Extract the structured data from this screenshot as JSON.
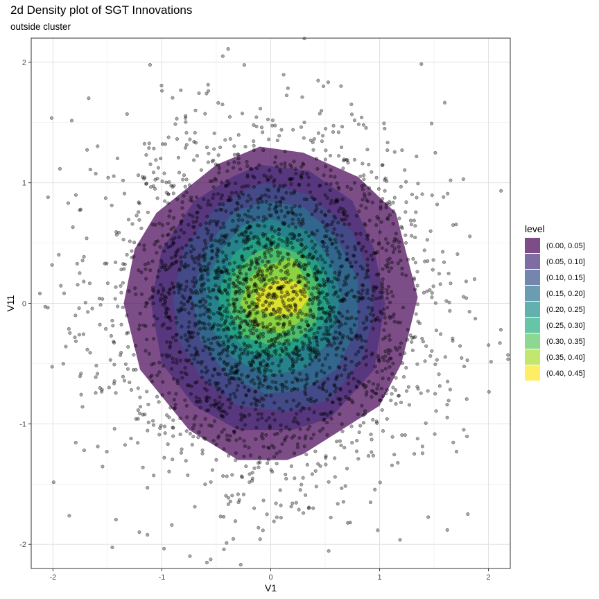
{
  "title": "2d Density plot of SGT Innovations",
  "subtitle": "outside cluster",
  "chart_data": {
    "type": "density_2d_filled_with_scatter",
    "title": "2d Density plot of SGT Innovations",
    "subtitle": "outside cluster",
    "xlabel": "V1",
    "ylabel": "V11",
    "xlim": [
      -2.2,
      2.2
    ],
    "ylim": [
      -2.2,
      2.2
    ],
    "x_ticks": [
      -2,
      -1,
      0,
      1,
      2
    ],
    "y_ticks": [
      -2,
      -1,
      0,
      1,
      2
    ],
    "grid": true,
    "legend": {
      "title": "level",
      "position": "right",
      "entries": [
        {
          "label": "(0.00, 0.05]",
          "color": "#440154"
        },
        {
          "label": "(0.05, 0.10]",
          "color": "#472D7B"
        },
        {
          "label": "(0.10, 0.15]",
          "color": "#3B528B"
        },
        {
          "label": "(0.15, 0.20]",
          "color": "#2C728E"
        },
        {
          "label": "(0.20, 0.25]",
          "color": "#21908C"
        },
        {
          "label": "(0.25, 0.30]",
          "color": "#27AD81"
        },
        {
          "label": "(0.30, 0.35]",
          "color": "#5DC863"
        },
        {
          "label": "(0.35, 0.40]",
          "color": "#AADC32"
        },
        {
          "label": "(0.40, 0.45]",
          "color": "#FDE725"
        }
      ]
    },
    "fill_alpha": 0.7,
    "density_bands": [
      {
        "level": "(0.00, 0.05]",
        "polygon": [
          [
            -0.1,
            1.3
          ],
          [
            0.3,
            1.25
          ],
          [
            0.8,
            1.05
          ],
          [
            1.15,
            0.75
          ],
          [
            1.35,
            0.05
          ],
          [
            1.2,
            -0.5
          ],
          [
            1.0,
            -0.85
          ],
          [
            0.3,
            -1.25
          ],
          [
            0.15,
            -1.3
          ],
          [
            -0.3,
            -1.3
          ],
          [
            -0.75,
            -1.05
          ],
          [
            -1.2,
            -0.55
          ],
          [
            -1.35,
            0.0
          ],
          [
            -1.25,
            0.45
          ],
          [
            -1.05,
            0.75
          ],
          [
            -0.5,
            1.15
          ]
        ]
      },
      {
        "level": "(0.05, 0.10]",
        "polygon": [
          [
            -0.1,
            1.15
          ],
          [
            0.35,
            1.1
          ],
          [
            0.75,
            0.85
          ],
          [
            0.95,
            0.45
          ],
          [
            1.05,
            0.0
          ],
          [
            0.95,
            -0.55
          ],
          [
            0.55,
            -0.95
          ],
          [
            0.2,
            -1.05
          ],
          [
            -0.3,
            -1.05
          ],
          [
            -0.7,
            -0.85
          ],
          [
            -1.0,
            -0.5
          ],
          [
            -1.1,
            0.0
          ],
          [
            -1.0,
            0.45
          ],
          [
            -0.7,
            0.85
          ],
          [
            -0.35,
            1.05
          ]
        ]
      },
      {
        "level": "(0.10, 0.15]",
        "polygon": [
          [
            -0.05,
            1.0
          ],
          [
            0.35,
            0.9
          ],
          [
            0.75,
            0.6
          ],
          [
            0.9,
            0.25
          ],
          [
            0.95,
            -0.05
          ],
          [
            0.85,
            -0.45
          ],
          [
            0.55,
            -0.8
          ],
          [
            0.15,
            -0.9
          ],
          [
            -0.3,
            -0.85
          ],
          [
            -0.65,
            -0.6
          ],
          [
            -0.85,
            -0.3
          ],
          [
            -0.9,
            0.05
          ],
          [
            -0.8,
            0.45
          ],
          [
            -0.5,
            0.8
          ],
          [
            -0.2,
            0.95
          ]
        ]
      },
      {
        "level": "(0.15, 0.20]",
        "polygon": [
          [
            -0.05,
            0.85
          ],
          [
            0.3,
            0.8
          ],
          [
            0.6,
            0.55
          ],
          [
            0.8,
            0.2
          ],
          [
            0.8,
            -0.2
          ],
          [
            0.6,
            -0.55
          ],
          [
            0.3,
            -0.72
          ],
          [
            -0.05,
            -0.75
          ],
          [
            -0.4,
            -0.6
          ],
          [
            -0.65,
            -0.3
          ],
          [
            -0.72,
            0.05
          ],
          [
            -0.6,
            0.45
          ],
          [
            -0.35,
            0.75
          ]
        ]
      },
      {
        "level": "(0.20, 0.25]",
        "polygon": [
          [
            0.0,
            0.7
          ],
          [
            0.35,
            0.6
          ],
          [
            0.55,
            0.35
          ],
          [
            0.65,
            0.05
          ],
          [
            0.55,
            -0.3
          ],
          [
            0.3,
            -0.55
          ],
          [
            -0.05,
            -0.6
          ],
          [
            -0.35,
            -0.45
          ],
          [
            -0.55,
            -0.2
          ],
          [
            -0.6,
            0.15
          ],
          [
            -0.45,
            0.45
          ],
          [
            -0.25,
            0.65
          ]
        ]
      },
      {
        "level": "(0.25, 0.30]",
        "polygon": [
          [
            0.0,
            0.58
          ],
          [
            0.3,
            0.5
          ],
          [
            0.5,
            0.25
          ],
          [
            0.55,
            -0.05
          ],
          [
            0.4,
            -0.3
          ],
          [
            0.1,
            -0.45
          ],
          [
            -0.2,
            -0.4
          ],
          [
            -0.45,
            -0.2
          ],
          [
            -0.48,
            0.1
          ],
          [
            -0.35,
            0.4
          ],
          [
            -0.15,
            0.55
          ]
        ]
      },
      {
        "level": "(0.30, 0.35]",
        "polygon": [
          [
            0.05,
            0.48
          ],
          [
            0.3,
            0.4
          ],
          [
            0.45,
            0.15
          ],
          [
            0.42,
            -0.15
          ],
          [
            0.25,
            -0.3
          ],
          [
            0.0,
            -0.35
          ],
          [
            -0.25,
            -0.28
          ],
          [
            -0.38,
            -0.05
          ],
          [
            -0.35,
            0.25
          ],
          [
            -0.15,
            0.42
          ]
        ]
      },
      {
        "level": "(0.35, 0.40]",
        "polygon": [
          [
            -0.1,
            0.3
          ],
          [
            0.2,
            0.38
          ],
          [
            0.35,
            0.15
          ],
          [
            0.35,
            -0.1
          ],
          [
            0.1,
            -0.25
          ],
          [
            -0.15,
            -0.2
          ],
          [
            -0.28,
            0.0
          ],
          [
            -0.2,
            0.2
          ]
        ]
      },
      {
        "level": "(0.40, 0.45]",
        "polygon": [
          [
            -0.1,
            0.12
          ],
          [
            0.08,
            0.2
          ],
          [
            0.25,
            0.18
          ],
          [
            0.35,
            0.05
          ],
          [
            0.25,
            -0.08
          ],
          [
            0.05,
            -0.1
          ],
          [
            -0.12,
            -0.05
          ],
          [
            -0.15,
            0.05
          ]
        ]
      }
    ],
    "scatter": {
      "description_color": "#000000",
      "point_alpha": 0.35,
      "n_points": 3000,
      "distribution": "approximately bivariate standard normal centered at (0,0), sd about 0.75"
    }
  }
}
